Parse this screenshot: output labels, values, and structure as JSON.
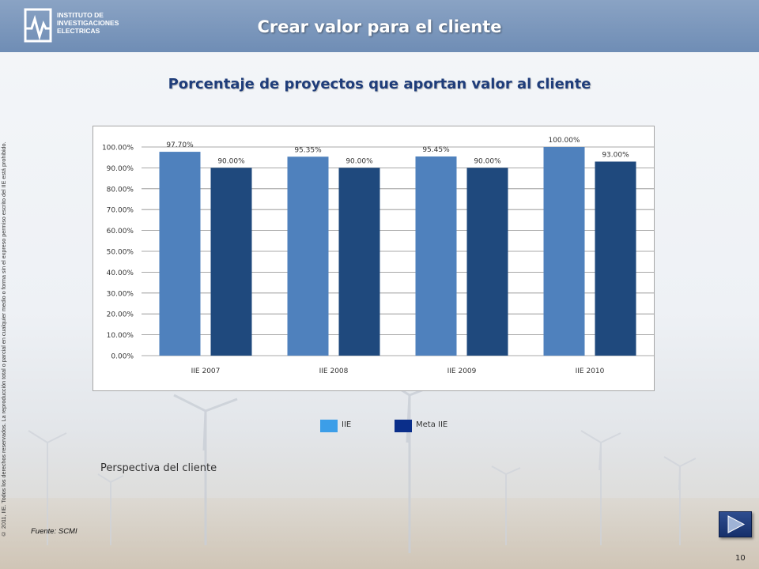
{
  "header": {
    "logo_lines": [
      "INSTITUTO DE",
      "INVESTIGACIONES",
      "ELECTRICAS"
    ],
    "title": "Crear valor para el cliente"
  },
  "copyright": "© 2011, IIE. Todos los derechos reservados. La reproducción total o parcial en cualquier medio o forma sin el expreso permiso escrito del IIE está prohibido.",
  "chart_data": {
    "type": "bar",
    "title": "Porcentaje de proyectos que aportan valor al cliente",
    "categories": [
      "IIE 2007",
      "IIE 2008",
      "IIE 2009",
      "IIE 2010"
    ],
    "series": [
      {
        "name": "IIE",
        "values": [
          97.7,
          95.35,
          95.45,
          100.0
        ],
        "labels": [
          "97.70%",
          "95.35%",
          "95.45%",
          "100.00%"
        ],
        "color": "#4f81bd"
      },
      {
        "name": "Meta IIE",
        "values": [
          90.0,
          90.0,
          90.0,
          93.0
        ],
        "labels": [
          "90.00%",
          "90.00%",
          "90.00%",
          "93.00%"
        ],
        "color": "#1f497d"
      }
    ],
    "ylim": [
      0,
      100
    ],
    "yticks": [
      "0.00%",
      "10.00%",
      "20.00%",
      "30.00%",
      "40.00%",
      "50.00%",
      "60.00%",
      "70.00%",
      "80.00%",
      "90.00%",
      "100.00%"
    ],
    "xlabel": "",
    "ylabel": "",
    "grid": true,
    "legend": {
      "position": "bottom",
      "swatch_colors": [
        "#3c9ee8",
        "#0a2e8a"
      ]
    }
  },
  "perspective": "Perspectiva del cliente",
  "source": "Fuente: SCMI",
  "page_number": "10",
  "icons": {
    "next": "next-slide-icon",
    "logo": "iie-logo-icon"
  },
  "colors": {
    "header": "#7593ba",
    "title_text": "#1f3d7a"
  }
}
